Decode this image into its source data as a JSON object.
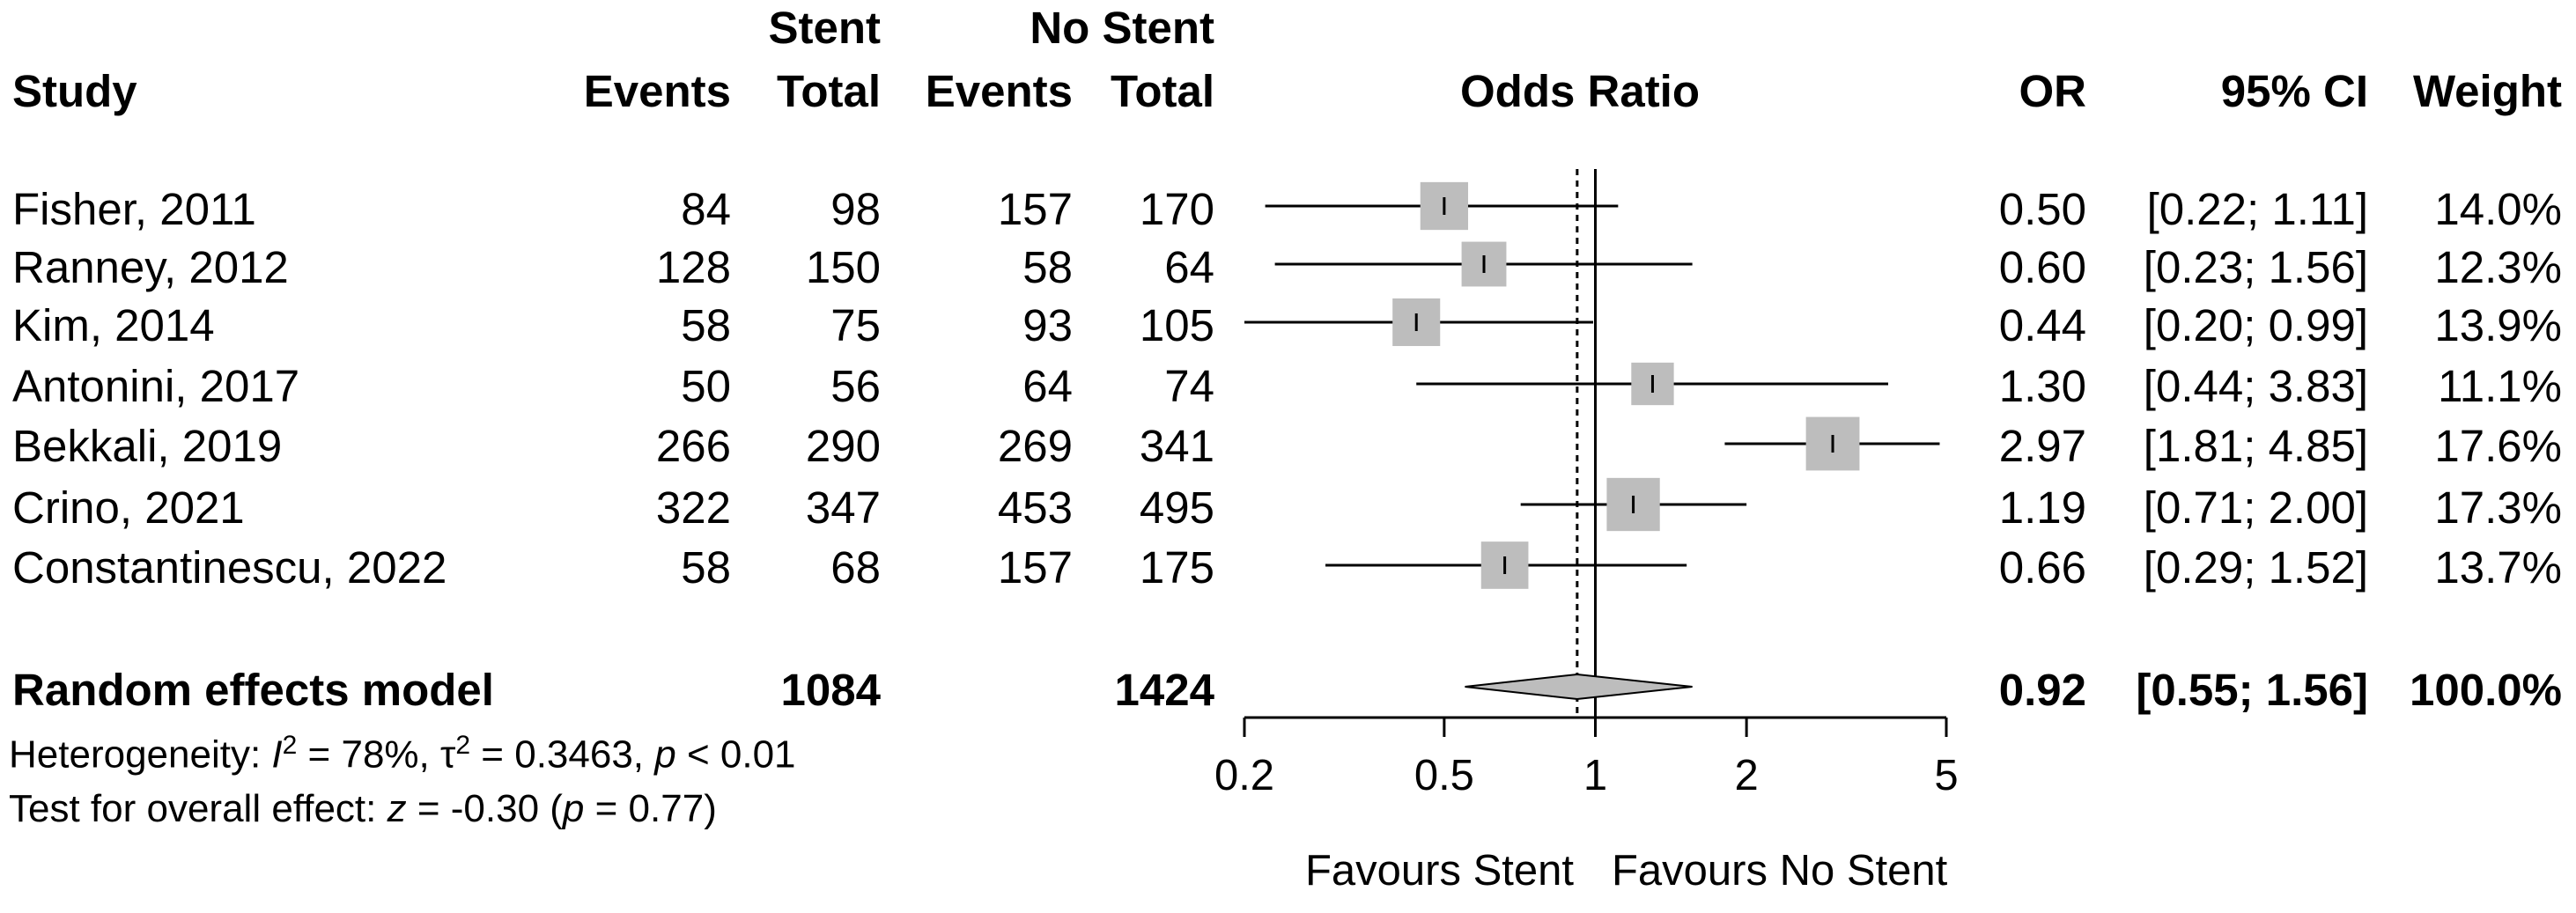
{
  "header": {
    "study": "Study",
    "events": "Events",
    "stent_top": "Stent",
    "stent_total": "Total",
    "nostent_top": "No Stent",
    "nostent_events": "Events",
    "nostent_total": "Total",
    "odds_ratio": "Odds Ratio",
    "or": "OR",
    "ci": "95% CI",
    "weight": "Weight"
  },
  "studies": [
    {
      "name": "Fisher, 2011",
      "stent_events": "84",
      "stent_total": "98",
      "nostent_events": "157",
      "nostent_total": "170",
      "or_text": "0.50",
      "ci_text": "[0.22; 1.11]",
      "weight_text": "14.0%"
    },
    {
      "name": "Ranney, 2012",
      "stent_events": "128",
      "stent_total": "150",
      "nostent_events": "58",
      "nostent_total": "64",
      "or_text": "0.60",
      "ci_text": "[0.23; 1.56]",
      "weight_text": "12.3%"
    },
    {
      "name": "Kim, 2014",
      "stent_events": "58",
      "stent_total": "75",
      "nostent_events": "93",
      "nostent_total": "105",
      "or_text": "0.44",
      "ci_text": "[0.20; 0.99]",
      "weight_text": "13.9%"
    },
    {
      "name": "Antonini, 2017",
      "stent_events": "50",
      "stent_total": "56",
      "nostent_events": "64",
      "nostent_total": "74",
      "or_text": "1.30",
      "ci_text": "[0.44; 3.83]",
      "weight_text": "11.1%"
    },
    {
      "name": "Bekkali, 2019",
      "stent_events": "266",
      "stent_total": "290",
      "nostent_events": "269",
      "nostent_total": "341",
      "or_text": "2.97",
      "ci_text": "[1.81; 4.85]",
      "weight_text": "17.6%"
    },
    {
      "name": "Crino, 2021",
      "stent_events": "322",
      "stent_total": "347",
      "nostent_events": "453",
      "nostent_total": "495",
      "or_text": "1.19",
      "ci_text": "[0.71; 2.00]",
      "weight_text": "17.3%"
    },
    {
      "name": "Constantinescu, 2022",
      "stent_events": "58",
      "stent_total": "68",
      "nostent_events": "157",
      "nostent_total": "175",
      "or_text": "0.66",
      "ci_text": "[0.29; 1.52]",
      "weight_text": "13.7%"
    }
  ],
  "summary": {
    "label": "Random effects model",
    "stent_total": "1084",
    "nostent_total": "1424",
    "or_text": "0.92",
    "ci_text": "[0.55; 1.56]",
    "weight_text": "100.0%"
  },
  "heterogeneity": {
    "prefix": "Heterogeneity: ",
    "i_symbol": "I",
    "i_sup": "2",
    "i_value": " = 78%, ",
    "tau_symbol": "τ",
    "tau_sup": "2",
    "tau_value": " = 0.3463, ",
    "p_symbol": "p",
    "p_value": " < 0.01"
  },
  "overall_effect": {
    "prefix": "Test for overall effect: ",
    "z_symbol": "z",
    "z_value": " = -0.30 (",
    "p_symbol": "p",
    "p_value": " = 0.77)"
  },
  "axis_labels": {
    "left": "Favours Stent",
    "right": "Favours No Stent"
  },
  "chart_data": {
    "type": "forest",
    "scale": "log",
    "xlim": [
      0.2,
      5
    ],
    "ticks": [
      0.2,
      0.5,
      1,
      2,
      5
    ],
    "tick_labels": [
      "0.2",
      "0.5",
      "1",
      "2",
      "5"
    ],
    "null_value": 1,
    "pooled_value": 0.92,
    "points": [
      {
        "study": "Fisher, 2011",
        "or": 0.5,
        "lower": 0.22,
        "upper": 1.11,
        "weight": 14.0
      },
      {
        "study": "Ranney, 2012",
        "or": 0.6,
        "lower": 0.23,
        "upper": 1.56,
        "weight": 12.3
      },
      {
        "study": "Kim, 2014",
        "or": 0.44,
        "lower": 0.2,
        "upper": 0.99,
        "weight": 13.9
      },
      {
        "study": "Antonini, 2017",
        "or": 1.3,
        "lower": 0.44,
        "upper": 3.83,
        "weight": 11.1
      },
      {
        "study": "Bekkali, 2019",
        "or": 2.97,
        "lower": 1.81,
        "upper": 4.85,
        "weight": 17.6
      },
      {
        "study": "Crino, 2021",
        "or": 1.19,
        "lower": 0.71,
        "upper": 2.0,
        "weight": 17.3
      },
      {
        "study": "Constantinescu, 2022",
        "or": 0.66,
        "lower": 0.29,
        "upper": 1.52,
        "weight": 13.7
      }
    ],
    "pooled": {
      "or": 0.92,
      "lower": 0.55,
      "upper": 1.56,
      "weight": 100.0
    },
    "colors": {
      "box": "#bdbdbd",
      "diamond": "#bdbdbd",
      "line": "#000000"
    }
  }
}
